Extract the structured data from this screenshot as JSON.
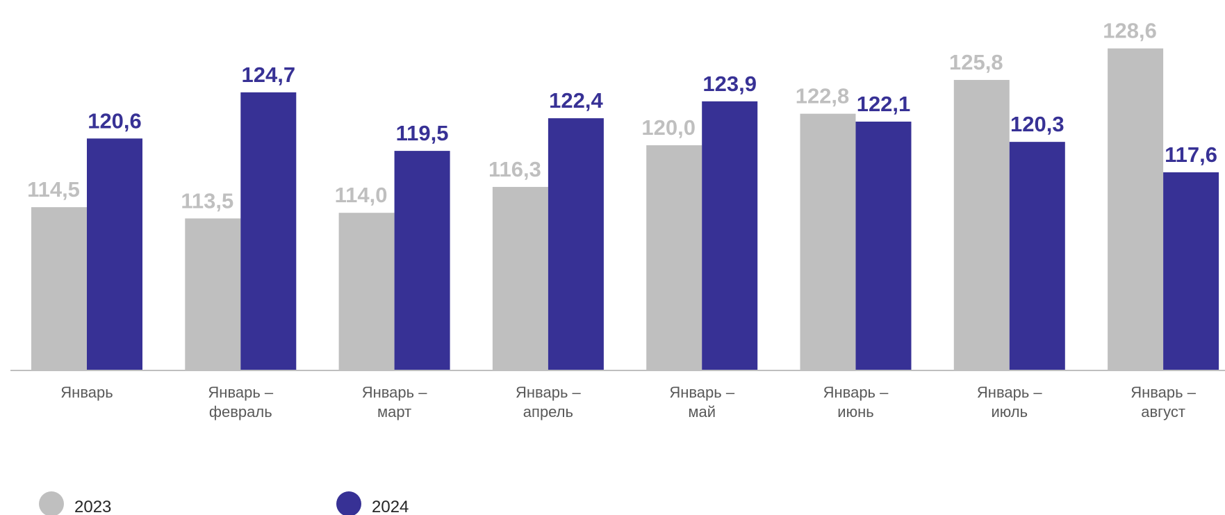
{
  "chart_data": {
    "type": "bar",
    "categories": [
      [
        "Январь"
      ],
      [
        "Январь –",
        "февраль"
      ],
      [
        "Январь –",
        "март"
      ],
      [
        "Январь –",
        "апрель"
      ],
      [
        "Январь –",
        "май"
      ],
      [
        "Январь –",
        "июнь"
      ],
      [
        "Январь –",
        "июль"
      ],
      [
        "Январь –",
        "август"
      ]
    ],
    "series": [
      {
        "name": "2023",
        "color": "#bfbfbf",
        "values": [
          114.5,
          113.5,
          114.0,
          116.3,
          120.0,
          122.8,
          125.8,
          128.6
        ],
        "labels": [
          "114,5",
          "113,5",
          "114,0",
          "116,3",
          "120,0",
          "122,8",
          "125,8",
          "128,6"
        ]
      },
      {
        "name": "2024",
        "color": "#373195",
        "values": [
          120.6,
          124.7,
          119.5,
          122.4,
          123.9,
          122.1,
          120.3,
          117.6
        ],
        "labels": [
          "120,6",
          "124,7",
          "119,5",
          "122,4",
          "123,9",
          "122,1",
          "120,3",
          "117,6"
        ]
      }
    ],
    "ylim": [
      100,
      130
    ],
    "legend_position": "bottom-left",
    "grid": false
  }
}
